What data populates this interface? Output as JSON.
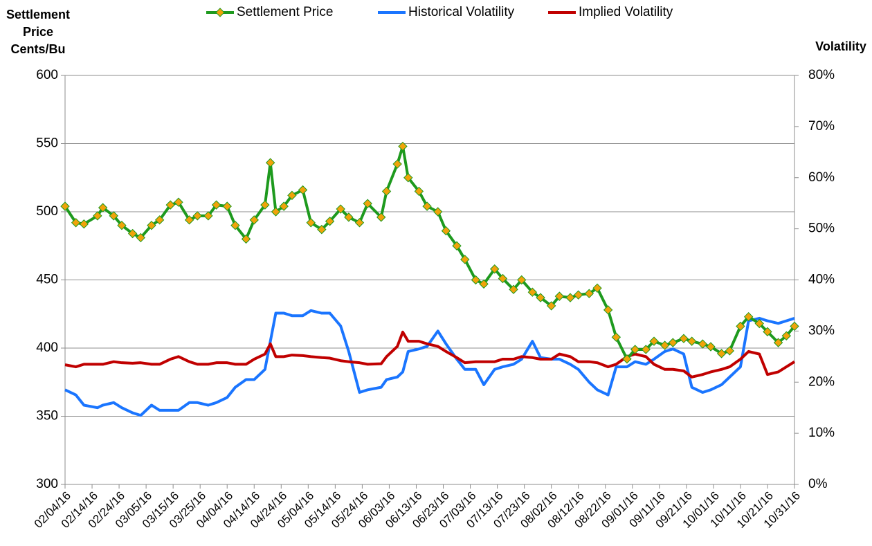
{
  "chart_data": {
    "type": "line",
    "ylabel": [
      "Settlement",
      "Price",
      "Cents/Bu"
    ],
    "y2label": "Volatility",
    "x": [
      "02/04/16",
      "02/08/16",
      "02/11/16",
      "02/16/16",
      "02/18/16",
      "02/22/16",
      "02/25/16",
      "02/29/16",
      "03/03/16",
      "03/07/16",
      "03/10/16",
      "03/14/16",
      "03/17/16",
      "03/21/16",
      "03/24/16",
      "03/28/16",
      "03/31/16",
      "04/04/16",
      "04/07/16",
      "04/11/16",
      "04/14/16",
      "04/18/16",
      "04/20/16",
      "04/22/16",
      "04/25/16",
      "04/28/16",
      "05/02/16",
      "05/05/16",
      "05/09/16",
      "05/12/16",
      "05/16/16",
      "05/19/16",
      "05/23/16",
      "05/26/16",
      "05/31/16",
      "06/02/16",
      "06/06/16",
      "06/08/16",
      "06/10/16",
      "06/14/16",
      "06/17/16",
      "06/21/16",
      "06/24/16",
      "06/28/16",
      "07/01/16",
      "07/05/16",
      "07/08/16",
      "07/12/16",
      "07/15/16",
      "07/19/16",
      "07/22/16",
      "07/26/16",
      "07/29/16",
      "08/02/16",
      "08/05/16",
      "08/09/16",
      "08/12/16",
      "08/16/16",
      "08/19/16",
      "08/23/16",
      "08/26/16",
      "08/30/16",
      "09/02/16",
      "09/06/16",
      "09/09/16",
      "09/13/16",
      "09/16/16",
      "09/20/16",
      "09/23/16",
      "09/27/16",
      "09/30/16",
      "10/04/16",
      "10/07/16",
      "10/11/16",
      "10/14/16",
      "10/18/16",
      "10/21/16",
      "10/25/16",
      "10/28/16",
      "10/31/16"
    ],
    "series": [
      {
        "name": "Settlement Price",
        "color": "#1e9a1e",
        "marker_color": "#f0a30a",
        "marker": "diamond",
        "values": [
          504,
          492,
          491,
          497,
          503,
          497,
          490,
          484,
          481,
          490,
          494,
          505,
          507,
          494,
          497,
          497,
          505,
          504,
          490,
          480,
          494,
          505,
          536,
          500,
          504,
          512,
          516,
          492,
          487,
          493,
          502,
          496,
          492,
          506,
          496,
          515,
          535,
          548,
          525,
          515,
          504,
          500,
          486,
          475,
          465,
          450,
          447,
          458,
          451,
          443,
          450,
          441,
          437,
          431,
          438,
          437,
          439,
          440,
          444,
          428,
          408,
          392,
          399,
          399,
          405,
          402,
          404,
          407,
          405,
          403,
          401,
          396,
          398,
          416,
          423,
          418,
          412,
          404,
          409,
          416
        ]
      },
      {
        "name": "Historical Volatility",
        "color": "#1a75ff",
        "axis": "y2",
        "values": [
          18.5,
          17.5,
          15.5,
          15,
          15.5,
          16,
          15,
          14,
          13.5,
          15.5,
          14.5,
          14.5,
          14.5,
          16,
          16,
          15.5,
          16,
          17,
          19,
          20.5,
          20.5,
          22.5,
          28,
          33.5,
          33.5,
          33,
          33,
          34,
          33.5,
          33.5,
          31,
          26,
          18,
          18.5,
          19,
          20.5,
          21,
          22,
          26,
          26.5,
          27,
          30,
          27.5,
          24.5,
          22.5,
          22.5,
          19.5,
          22.5,
          23,
          23.5,
          24.5,
          28,
          24.8,
          24.5,
          24.5,
          23.5,
          22.5,
          20,
          18.5,
          17.5,
          23,
          23,
          24,
          23.5,
          24.5,
          26,
          26.5,
          25.5,
          19,
          18,
          18.5,
          19.5,
          21,
          23,
          32,
          32.5,
          32,
          31.5,
          32,
          32.5
        ]
      },
      {
        "name": "Implied Volatility",
        "color": "#c00000",
        "axis": "y2",
        "values": [
          23.4,
          23,
          23.5,
          23.5,
          23.5,
          24,
          23.8,
          23.7,
          23.8,
          23.5,
          23.5,
          24.5,
          25,
          24,
          23.5,
          23.5,
          23.8,
          23.8,
          23.5,
          23.5,
          24.5,
          25.5,
          27.5,
          25,
          25,
          25.3,
          25.2,
          25,
          24.8,
          24.7,
          24.2,
          24,
          23.8,
          23.5,
          23.6,
          25,
          27,
          29.8,
          28,
          28,
          27.5,
          27,
          26,
          24.8,
          23.8,
          24,
          24,
          24,
          24.5,
          24.5,
          25,
          24.8,
          24.5,
          24.5,
          25.5,
          25,
          24,
          24,
          23.8,
          23,
          23.5,
          25,
          25.5,
          25,
          23.5,
          22.5,
          22.5,
          22.2,
          21,
          21.5,
          22,
          22.5,
          23,
          24.5,
          26,
          25.5,
          21.5,
          22,
          23,
          24
        ]
      }
    ],
    "xlim": [
      "02/04/16",
      "10/31/16"
    ],
    "xticks": [
      "02/04/16",
      "02/14/16",
      "02/24/16",
      "03/05/16",
      "03/15/16",
      "03/25/16",
      "04/04/16",
      "04/14/16",
      "04/24/16",
      "05/04/16",
      "05/14/16",
      "05/24/16",
      "06/03/16",
      "06/13/16",
      "06/23/16",
      "07/03/16",
      "07/13/16",
      "07/23/16",
      "08/02/16",
      "08/12/16",
      "08/22/16",
      "09/01/16",
      "09/11/16",
      "09/21/16",
      "10/01/16",
      "10/11/16",
      "10/21/16",
      "10/31/16"
    ],
    "ylim": [
      300,
      600
    ],
    "yticks": [
      300,
      350,
      400,
      450,
      500,
      550,
      600
    ],
    "y2lim": [
      0,
      80
    ],
    "y2ticks": [
      {
        "value": 0,
        "label": "0%"
      },
      {
        "value": 10,
        "label": "10%"
      },
      {
        "value": 20,
        "label": "20%"
      },
      {
        "value": 30,
        "label": "30%"
      },
      {
        "value": 40,
        "label": "40%"
      },
      {
        "value": 50,
        "label": "50%"
      },
      {
        "value": 60,
        "label": "60%"
      },
      {
        "value": 70,
        "label": "70%"
      },
      {
        "value": 80,
        "label": "80%"
      }
    ],
    "grid": true,
    "legend": "top"
  }
}
